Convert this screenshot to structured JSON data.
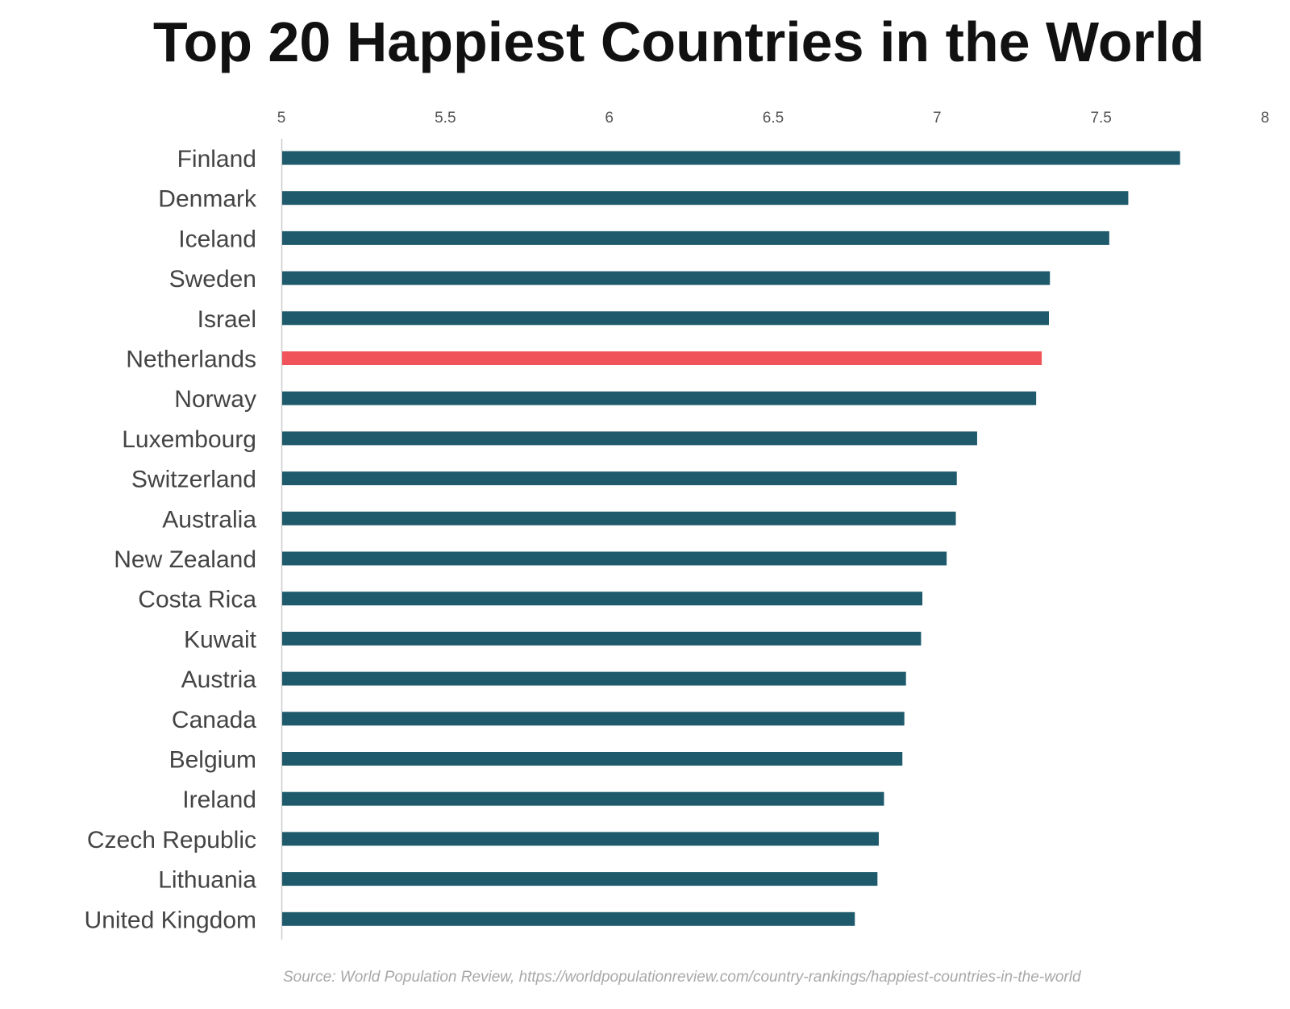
{
  "chart_data": {
    "type": "bar",
    "orientation": "horizontal",
    "title": "Top 20 Happiest Countries in the World",
    "source": "Source: World Population Review, https://worldpopulationreview.com/country-rankings/happiest-countries-in-the-world",
    "categories": [
      "Finland",
      "Denmark",
      "Iceland",
      "Sweden",
      "Israel",
      "Netherlands",
      "Norway",
      "Luxembourg",
      "Switzerland",
      "Australia",
      "New Zealand",
      "Costa Rica",
      "Kuwait",
      "Austria",
      "Canada",
      "Belgium",
      "Ireland",
      "Czech Republic",
      "Lithuania",
      "United Kingdom"
    ],
    "values": [
      7.741,
      7.583,
      7.525,
      7.344,
      7.341,
      7.319,
      7.302,
      7.122,
      7.06,
      7.057,
      7.029,
      6.955,
      6.951,
      6.905,
      6.9,
      6.894,
      6.838,
      6.822,
      6.818,
      6.749
    ],
    "xlim": [
      5,
      8
    ],
    "xticks": [
      "5",
      "5.5",
      "6",
      "6.5",
      "7",
      "7.5",
      "8"
    ],
    "tick_values": [
      5,
      5.5,
      6,
      6.5,
      7,
      7.5,
      8
    ],
    "axis_position": "top",
    "grid": false,
    "colors": {
      "default": "#1e5a6b",
      "highlight": "#f0535a"
    },
    "highlight_category": "Netherlands"
  }
}
